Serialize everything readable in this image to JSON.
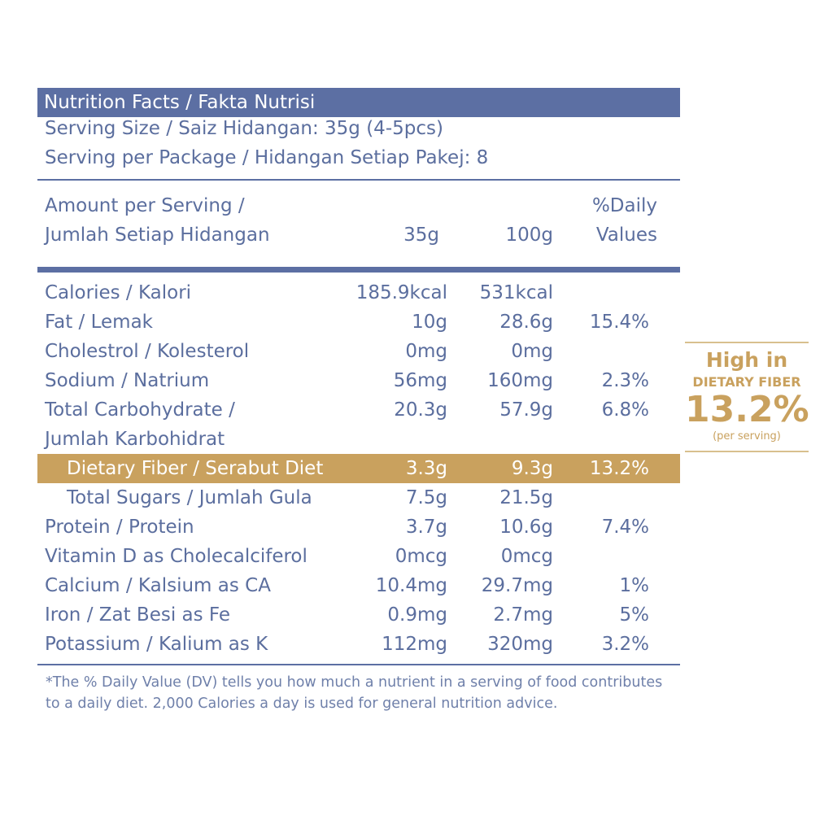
{
  "title": "Nutrition Facts / Fakta Nutrisi",
  "serving_size": "Serving Size / Saiz Hidangan: 35g (4-5pcs)",
  "servings_per_package": "Serving per Package / Hidangan Setiap Pakej: 8",
  "header": {
    "amount_line1": "Amount per Serving /",
    "amount_line2": "Jumlah Setiap Hidangan",
    "col_35g": "35g",
    "col_100g": "100g",
    "dv_line1": "%Daily",
    "dv_line2": "Values"
  },
  "rows": [
    {
      "name": "Calories / Kalori",
      "v35": "185.9kcal",
      "v100": "531kcal",
      "dv": ""
    },
    {
      "name": "Fat / Lemak",
      "v35": "10g",
      "v100": "28.6g",
      "dv": "15.4%"
    },
    {
      "name": "Cholestrol / Kolesterol",
      "v35": "0mg",
      "v100": "0mg",
      "dv": ""
    },
    {
      "name": "Sodium / Natrium",
      "v35": "56mg",
      "v100": "160mg",
      "dv": "2.3%"
    },
    {
      "name": "Total Carbohydrate /",
      "v35": "20.3g",
      "v100": "57.9g",
      "dv": "6.8%"
    },
    {
      "name": "Jumlah Karbohidrat",
      "v35": "",
      "v100": "",
      "dv": ""
    },
    {
      "name": "Dietary Fiber / Serabut Diet",
      "v35": "3.3g",
      "v100": "9.3g",
      "dv": "13.2%"
    },
    {
      "name": "Total Sugars / Jumlah Gula",
      "v35": "7.5g",
      "v100": "21.5g",
      "dv": ""
    },
    {
      "name": "Protein / Protein",
      "v35": "3.7g",
      "v100": "10.6g",
      "dv": "7.4%"
    },
    {
      "name": "Vitamin D as Cholecalciferol",
      "v35": "0mcg",
      "v100": "0mcg",
      "dv": ""
    },
    {
      "name": "Calcium / Kalsium as CA",
      "v35": "10.4mg",
      "v100": "29.7mg",
      "dv": "1%"
    },
    {
      "name": "Iron / Zat Besi as Fe",
      "v35": "0.9mg",
      "v100": "2.7mg",
      "dv": "5%"
    },
    {
      "name": "Potassium / Kalium as K",
      "v35": "112mg",
      "v100": "320mg",
      "dv": "3.2%"
    }
  ],
  "footnote": "*The % Daily Value (DV) tells you how much a nutrient in a serving of food contributes to a daily diet. 2,000 Calories a day is used for general nutrition advice.",
  "badge": {
    "line1": "High in",
    "line2": "DIETARY FIBER",
    "value": "13.2%",
    "note": "(per serving)"
  },
  "colors": {
    "primary": "#5c6fa3",
    "accent": "#c9a15e"
  }
}
